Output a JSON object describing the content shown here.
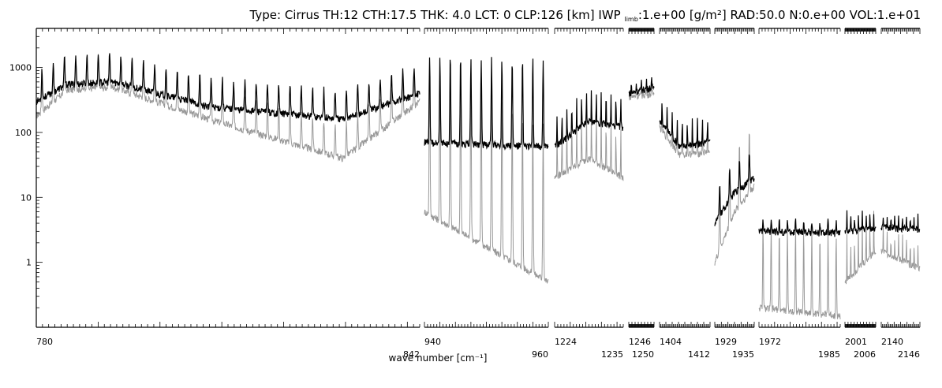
{
  "chart_data": {
    "type": "line",
    "title": "Type: Cirrus TH:12 CTH:17.5 THK: 4.0 LCT: 0 CLP:126 [km] IWP",
    "title_sub": "limb",
    "title_rest": ":1.e+00 [g/m²] RAD:50.0 N:0.e+00 VOL:1.e+01",
    "xlabel": "wave number [cm⁻¹]",
    "ylabel": "",
    "yscale": "log",
    "ylim": [
      0.1,
      4000
    ],
    "y_tick_labels": [
      "1000",
      "100",
      "10",
      "1"
    ],
    "y_tick_values": [
      1000,
      100,
      10,
      1
    ],
    "grid": false,
    "series_colors": {
      "black": "#000000",
      "gray": "#999999"
    },
    "segments": [
      {
        "x_start": 780,
        "x_end": 842,
        "label_start": "780",
        "label_end": "842",
        "black": {
          "base": [
            [
              0,
              300
            ],
            [
              0.08,
              550
            ],
            [
              0.2,
              600
            ],
            [
              0.45,
              250
            ],
            [
              0.8,
              160
            ],
            [
              1,
              400
            ]
          ],
          "peaks": 34,
          "peak_factor": 2.8
        },
        "gray": {
          "base": [
            [
              0,
              180
            ],
            [
              0.08,
              450
            ],
            [
              0.2,
              500
            ],
            [
              0.45,
              160
            ],
            [
              0.8,
              40
            ],
            [
              1,
              300
            ]
          ],
          "peaks": 34,
          "peak_factor": 3.2
        }
      },
      {
        "x_start": 940,
        "x_end": 960,
        "label_start": "940",
        "label_end": "960",
        "black": {
          "base": [
            [
              0,
              70
            ],
            [
              1,
              60
            ]
          ],
          "peaks": 12,
          "peak_factor": 22
        },
        "gray": {
          "base": [
            [
              0,
              6
            ],
            [
              1,
              0.5
            ]
          ],
          "peaks": 12,
          "peak_factor": 250
        }
      },
      {
        "x_start": 1224,
        "x_end": 1235,
        "label_start": "1224",
        "label_end": "1235",
        "black": {
          "base": [
            [
              0,
              60
            ],
            [
              0.5,
              150
            ],
            [
              1,
              120
            ]
          ],
          "peaks": 14,
          "peak_factor": 3
        },
        "gray": {
          "base": [
            [
              0,
              20
            ],
            [
              0.5,
              40
            ],
            [
              1,
              20
            ]
          ],
          "peaks": 14,
          "peak_factor": 6
        }
      },
      {
        "x_start": 1246,
        "x_end": 1250,
        "label_start": "1246",
        "label_end": "1250",
        "black": {
          "base": [
            [
              0,
              400
            ],
            [
              1,
              500
            ]
          ],
          "peaks": 5,
          "peak_factor": 1.4
        },
        "gray": {
          "base": [
            [
              0,
              350
            ],
            [
              1,
              400
            ]
          ],
          "peaks": 5,
          "peak_factor": 1.6
        }
      },
      {
        "x_start": 1404,
        "x_end": 1412,
        "label_start": "1404",
        "label_end": "1412",
        "black": {
          "base": [
            [
              0,
              150
            ],
            [
              0.4,
              60
            ],
            [
              1,
              70
            ]
          ],
          "peaks": 10,
          "peak_factor": 2.5
        },
        "gray": {
          "base": [
            [
              0,
              120
            ],
            [
              0.4,
              45
            ],
            [
              1,
              50
            ]
          ],
          "peaks": 10,
          "peak_factor": 3
        }
      },
      {
        "x_start": 1929,
        "x_end": 1935,
        "label_start": "1929",
        "label_end": "1935",
        "black": {
          "base": [
            [
              0,
              4
            ],
            [
              0.5,
              12
            ],
            [
              1,
              20
            ]
          ],
          "peaks": 4,
          "peak_factor": 3
        },
        "gray": {
          "base": [
            [
              0,
              1
            ],
            [
              0.5,
              6
            ],
            [
              1,
              15
            ]
          ],
          "peaks": 4,
          "peak_factor": 10
        }
      },
      {
        "x_start": 1972,
        "x_end": 1985,
        "label_start": "1972",
        "label_end": "1985",
        "black": {
          "base": [
            [
              0,
              3
            ],
            [
              1,
              2.8
            ]
          ],
          "peaks": 10,
          "peak_factor": 1.5
        },
        "gray": {
          "base": [
            [
              0,
              0.2
            ],
            [
              1,
              0.15
            ]
          ],
          "peaks": 10,
          "peak_factor": 20
        }
      },
      {
        "x_start": 2001,
        "x_end": 2006,
        "label_start": "2001",
        "label_end": "2006",
        "black": {
          "base": [
            [
              0,
              3
            ],
            [
              1,
              3.2
            ]
          ],
          "peaks": 8,
          "peak_factor": 2
        },
        "gray": {
          "base": [
            [
              0,
              0.5
            ],
            [
              1,
              1.5
            ]
          ],
          "peaks": 8,
          "peak_factor": 5
        }
      },
      {
        "x_start": 2140,
        "x_end": 2146,
        "label_start": "2140",
        "label_end": "2146",
        "black": {
          "base": [
            [
              0,
              3.5
            ],
            [
              1,
              3.2
            ]
          ],
          "peaks": 10,
          "peak_factor": 1.6
        },
        "gray": {
          "base": [
            [
              0,
              1.5
            ],
            [
              1,
              0.8
            ]
          ],
          "peaks": 10,
          "peak_factor": 2.5
        }
      }
    ]
  }
}
